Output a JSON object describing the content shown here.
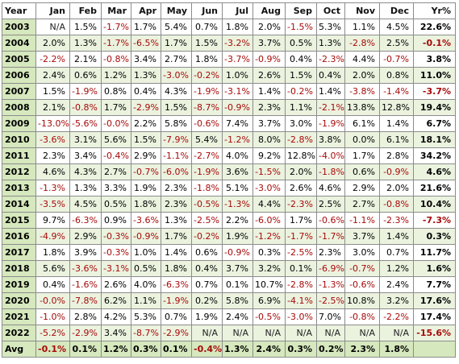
{
  "header": {
    "year_label": "Year",
    "months": [
      "Jan",
      "Feb",
      "Mar",
      "Apr",
      "May",
      "Jun",
      "Jul",
      "Aug",
      "Sep",
      "Oct",
      "Nov",
      "Dec"
    ],
    "yr_label": "Yr%"
  },
  "rows": [
    {
      "year": "2003",
      "months": [
        "N/A",
        "1.5%",
        "-1.7%",
        "1.7%",
        "5.4%",
        "0.7%",
        "1.8%",
        "2.0%",
        "-1.5%",
        "5.3%",
        "1.1%",
        "4.5%"
      ],
      "yr": "22.6%"
    },
    {
      "year": "2004",
      "months": [
        "2.0%",
        "1.3%",
        "-1.7%",
        "-6.5%",
        "1.7%",
        "1.5%",
        "-3.2%",
        "3.7%",
        "0.5%",
        "1.3%",
        "-2.8%",
        "2.5%"
      ],
      "yr": "-0.1%"
    },
    {
      "year": "2005",
      "months": [
        "-2.2%",
        "2.1%",
        "-0.8%",
        "3.4%",
        "2.7%",
        "1.8%",
        "-3.7%",
        "-0.9%",
        "0.4%",
        "-2.3%",
        "4.4%",
        "-0.7%"
      ],
      "yr": "3.8%"
    },
    {
      "year": "2006",
      "months": [
        "2.4%",
        "0.6%",
        "1.2%",
        "1.3%",
        "-3.0%",
        "-0.2%",
        "1.0%",
        "2.6%",
        "1.5%",
        "0.4%",
        "2.0%",
        "0.8%"
      ],
      "yr": "11.0%"
    },
    {
      "year": "2007",
      "months": [
        "1.5%",
        "-1.9%",
        "0.8%",
        "0.4%",
        "4.3%",
        "-1.9%",
        "-3.1%",
        "1.4%",
        "-0.2%",
        "1.4%",
        "-3.8%",
        "-1.4%"
      ],
      "yr": "-3.7%"
    },
    {
      "year": "2008",
      "months": [
        "2.1%",
        "-0.8%",
        "1.7%",
        "-2.9%",
        "1.5%",
        "-8.7%",
        "-0.9%",
        "2.3%",
        "1.1%",
        "-2.1%",
        "13.8%",
        "12.8%"
      ],
      "yr": "19.4%"
    },
    {
      "year": "2009",
      "months": [
        "-13.0%",
        "-5.6%",
        "-0.0%",
        "2.2%",
        "5.8%",
        "-0.6%",
        "7.4%",
        "3.7%",
        "3.0%",
        "-1.9%",
        "6.1%",
        "1.4%"
      ],
      "yr": "6.7%"
    },
    {
      "year": "2010",
      "months": [
        "-3.6%",
        "3.1%",
        "5.6%",
        "1.5%",
        "-7.9%",
        "5.4%",
        "-1.2%",
        "8.0%",
        "-2.8%",
        "3.8%",
        "0.0%",
        "6.1%"
      ],
      "yr": "18.1%"
    },
    {
      "year": "2011",
      "months": [
        "2.3%",
        "3.4%",
        "-0.4%",
        "2.9%",
        "-1.1%",
        "-2.7%",
        "4.0%",
        "9.2%",
        "12.8%",
        "-4.0%",
        "1.7%",
        "2.8%"
      ],
      "yr": "34.2%"
    },
    {
      "year": "2012",
      "months": [
        "4.6%",
        "4.3%",
        "2.7%",
        "-0.7%",
        "-6.0%",
        "-1.9%",
        "3.6%",
        "-1.5%",
        "2.0%",
        "-1.8%",
        "0.6%",
        "-0.9%"
      ],
      "yr": "4.6%"
    },
    {
      "year": "2013",
      "months": [
        "-1.3%",
        "1.3%",
        "3.3%",
        "1.9%",
        "2.3%",
        "-1.8%",
        "5.1%",
        "-3.0%",
        "2.6%",
        "4.6%",
        "2.9%",
        "2.0%"
      ],
      "yr": "21.6%"
    },
    {
      "year": "2014",
      "months": [
        "-3.5%",
        "4.5%",
        "0.5%",
        "1.8%",
        "2.3%",
        "-0.5%",
        "-1.3%",
        "4.4%",
        "-2.3%",
        "2.5%",
        "2.7%",
        "-0.8%"
      ],
      "yr": "10.4%"
    },
    {
      "year": "2015",
      "months": [
        "9.7%",
        "-6.3%",
        "0.9%",
        "-3.6%",
        "1.3%",
        "-2.5%",
        "2.2%",
        "-6.0%",
        "1.7%",
        "-0.6%",
        "-1.1%",
        "-2.3%"
      ],
      "yr": "-7.3%"
    },
    {
      "year": "2016",
      "months": [
        "-4.9%",
        "2.9%",
        "-0.3%",
        "-0.9%",
        "1.7%",
        "-0.2%",
        "1.9%",
        "-1.2%",
        "-1.7%",
        "-1.7%",
        "3.7%",
        "1.4%"
      ],
      "yr": "0.3%"
    },
    {
      "year": "2017",
      "months": [
        "1.8%",
        "3.9%",
        "-0.3%",
        "1.0%",
        "1.4%",
        "0.6%",
        "-0.9%",
        "0.3%",
        "-2.5%",
        "2.3%",
        "3.0%",
        "0.7%"
      ],
      "yr": "11.7%"
    },
    {
      "year": "2018",
      "months": [
        "5.6%",
        "-3.6%",
        "-3.1%",
        "0.5%",
        "1.8%",
        "0.4%",
        "3.7%",
        "3.2%",
        "0.1%",
        "-6.9%",
        "-0.7%",
        "1.2%"
      ],
      "yr": "1.6%"
    },
    {
      "year": "2019",
      "months": [
        "0.4%",
        "-1.6%",
        "2.6%",
        "4.0%",
        "-6.3%",
        "0.7%",
        "0.1%",
        "10.7%",
        "-2.8%",
        "-1.3%",
        "-0.6%",
        "2.4%"
      ],
      "yr": "7.7%"
    },
    {
      "year": "2020",
      "months": [
        "-0.0%",
        "-7.8%",
        "6.2%",
        "1.1%",
        "-1.9%",
        "0.2%",
        "5.8%",
        "6.9%",
        "-4.1%",
        "-2.5%",
        "10.8%",
        "3.2%"
      ],
      "yr": "17.6%"
    },
    {
      "year": "2021",
      "months": [
        "-1.0%",
        "2.8%",
        "4.2%",
        "5.3%",
        "0.7%",
        "1.9%",
        "2.4%",
        "-0.5%",
        "-3.0%",
        "7.0%",
        "-0.8%",
        "-2.2%"
      ],
      "yr": "17.4%"
    },
    {
      "year": "2022",
      "months": [
        "-5.2%",
        "-2.9%",
        "3.4%",
        "-8.7%",
        "-2.9%",
        "N/A",
        "N/A",
        "N/A",
        "N/A",
        "N/A",
        "N/A",
        "N/A"
      ],
      "yr": "-15.6%"
    }
  ],
  "average": {
    "label": "Avg",
    "months": [
      "-0.1%",
      "0.1%",
      "1.2%",
      "0.3%",
      "0.1%",
      "-0.4%",
      "1.3%",
      "2.4%",
      "0.3%",
      "0.2%",
      "2.3%",
      "1.8%"
    ],
    "yr": ""
  },
  "colors": {
    "negative": "#a60a0a",
    "year_column_bg": "#d6e8bd",
    "alt_row_bg": "#ebf3df",
    "border": "#8c8c8c"
  }
}
